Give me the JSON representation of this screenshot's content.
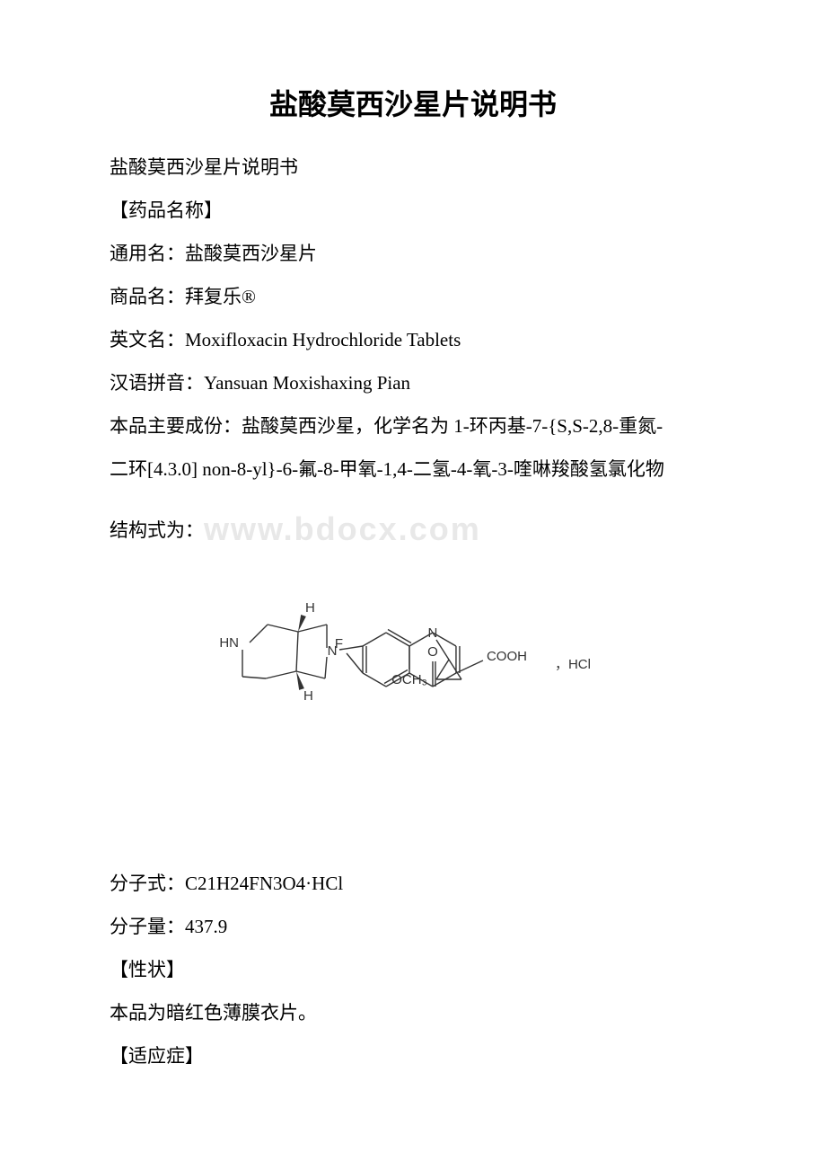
{
  "title": "盐酸莫西沙星片说明书",
  "lines": {
    "l1": "盐酸莫西沙星片说明书",
    "l2": "【药品名称】",
    "l3": "通用名：盐酸莫西沙星片",
    "l4": "商品名：拜复乐®",
    "l5": "英文名：Moxifloxacin Hydrochloride Tablets",
    "l6": "汉语拼音：Yansuan Moxishaxing Pian",
    "l7": "本品主要成份：盐酸莫西沙星，化学名为 1-环丙基-7-{S,S-2,8-重氮-",
    "l8": "二环[4.3.0] non-8-yl}-6-氟-8-甲氧-1,4-二氢-4-氧-3-喹啉羧酸氢氯化物",
    "l9a": "结构式为：",
    "l9b": "www.bdocx.com",
    "l10": "分子式：C21H24FN3O4·HCl",
    "l11": "分子量：437.9",
    "l12": "【性状】",
    "l13": "本品为暗红色薄膜衣片。",
    "l14": "【适应症】"
  },
  "structure": {
    "labels": {
      "F": "F",
      "O": "O",
      "COOH": "COOH",
      "N1": "N",
      "N2": "N",
      "HN": "HN",
      "H1": "H",
      "H2": "H",
      "OCH3": "OCH₃",
      "HCl": "，HCl"
    },
    "stroke": "#333333",
    "stroke_width": 1.4,
    "font_size": 15,
    "font_family": "Arial, sans-serif"
  }
}
